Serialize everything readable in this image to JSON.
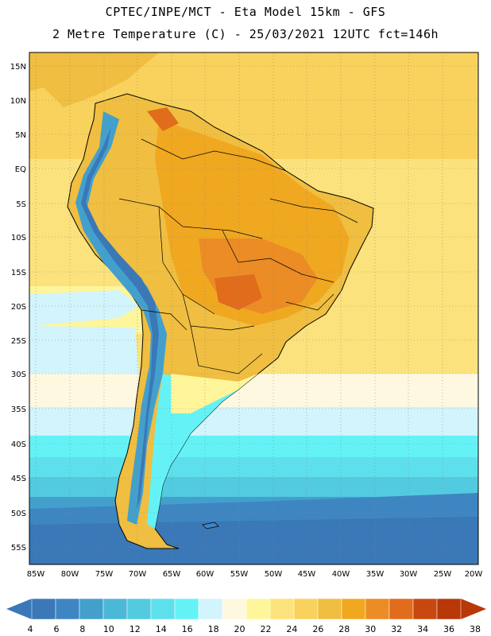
{
  "title": {
    "line1": "CPTEC/INPE/MCT -  Eta Model 15km - GFS",
    "line2": "2 Metre Temperature (C) - 25/03/2021 12UTC fct=146h"
  },
  "axes": {
    "lat_labels": [
      "15N",
      "10N",
      "5N",
      "EQ",
      "5S",
      "10S",
      "15S",
      "20S",
      "25S",
      "30S",
      "35S",
      "40S",
      "45S",
      "50S",
      "55S"
    ],
    "lon_labels": [
      "85W",
      "80W",
      "75W",
      "70W",
      "65W",
      "60W",
      "55W",
      "50W",
      "45W",
      "40W",
      "35W",
      "30W",
      "25W",
      "20W"
    ]
  },
  "colorbar": {
    "labels": [
      "4",
      "6",
      "8",
      "10",
      "12",
      "14",
      "16",
      "18",
      "20",
      "22",
      "24",
      "26",
      "28",
      "30",
      "32",
      "34",
      "36",
      "38"
    ],
    "colors": [
      "#3a78b8",
      "#3e86c2",
      "#43a0cc",
      "#4cb8d8",
      "#52cbe0",
      "#5ee0ec",
      "#64f2f6",
      "#d2f4fc",
      "#fff8e0",
      "#fff59a",
      "#fce27c",
      "#f8d25c",
      "#f0be40",
      "#f0a820",
      "#ec8c24",
      "#e06c1c",
      "#c84810",
      "#b83808"
    ]
  }
}
